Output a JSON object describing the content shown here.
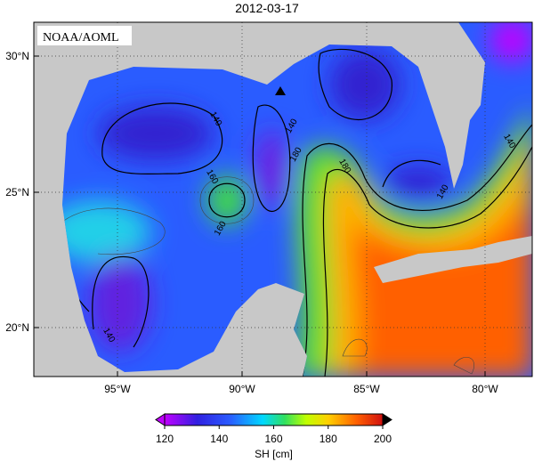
{
  "header": {
    "title": "2012-03-17"
  },
  "map": {
    "credit": "NOAA/AOML",
    "lat_labels": [
      "30°N",
      "25°N",
      "20°N"
    ],
    "lon_labels": [
      "95°W",
      "90°W",
      "85°W",
      "80°W"
    ],
    "contour_labels": [
      "140",
      "140",
      "140",
      "160",
      "160",
      "180",
      "180",
      "140",
      "140"
    ]
  },
  "colorbar": {
    "ticks": [
      120,
      140,
      160,
      180,
      200
    ],
    "label": "SH [cm]"
  }
}
